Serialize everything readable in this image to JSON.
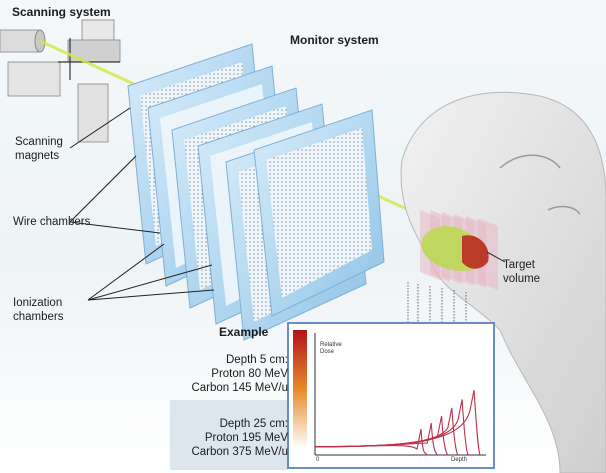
{
  "labels": {
    "scanning_system": "Scanning system",
    "monitor_system": "Monitor system",
    "scanning_magnets": "Scanning magnets",
    "wire_chambers": "Wire chambers",
    "ionization_chambers": "Ionization chambers",
    "target_volume": "Target volume"
  },
  "example": {
    "title": "Example",
    "shallow": {
      "depth": "Depth 5 cm:",
      "proton": "Proton 80 MeV",
      "carbon": "Carbon 145 MeV/u"
    },
    "deep": {
      "depth": "Depth 25 cm:",
      "proton": "Proton 195 MeV",
      "carbon": "Carbon 375 MeV/u"
    }
  },
  "chart_data": {
    "type": "line",
    "ylabel": "Relative Dose",
    "xlabel": "Depth",
    "x_tick_start": "0",
    "series_count": 6,
    "peak_positions_fraction": [
      0.62,
      0.68,
      0.74,
      0.8,
      0.86,
      0.93
    ],
    "peak_heights_fraction": [
      0.22,
      0.27,
      0.33,
      0.4,
      0.47,
      0.55
    ]
  },
  "colors": {
    "beam": "#d4e843",
    "chamber_frame": "#a9d2ec",
    "curve": "#c0304a",
    "example_panel": "#dbe6ee",
    "chart_border": "#6a8cc6"
  }
}
